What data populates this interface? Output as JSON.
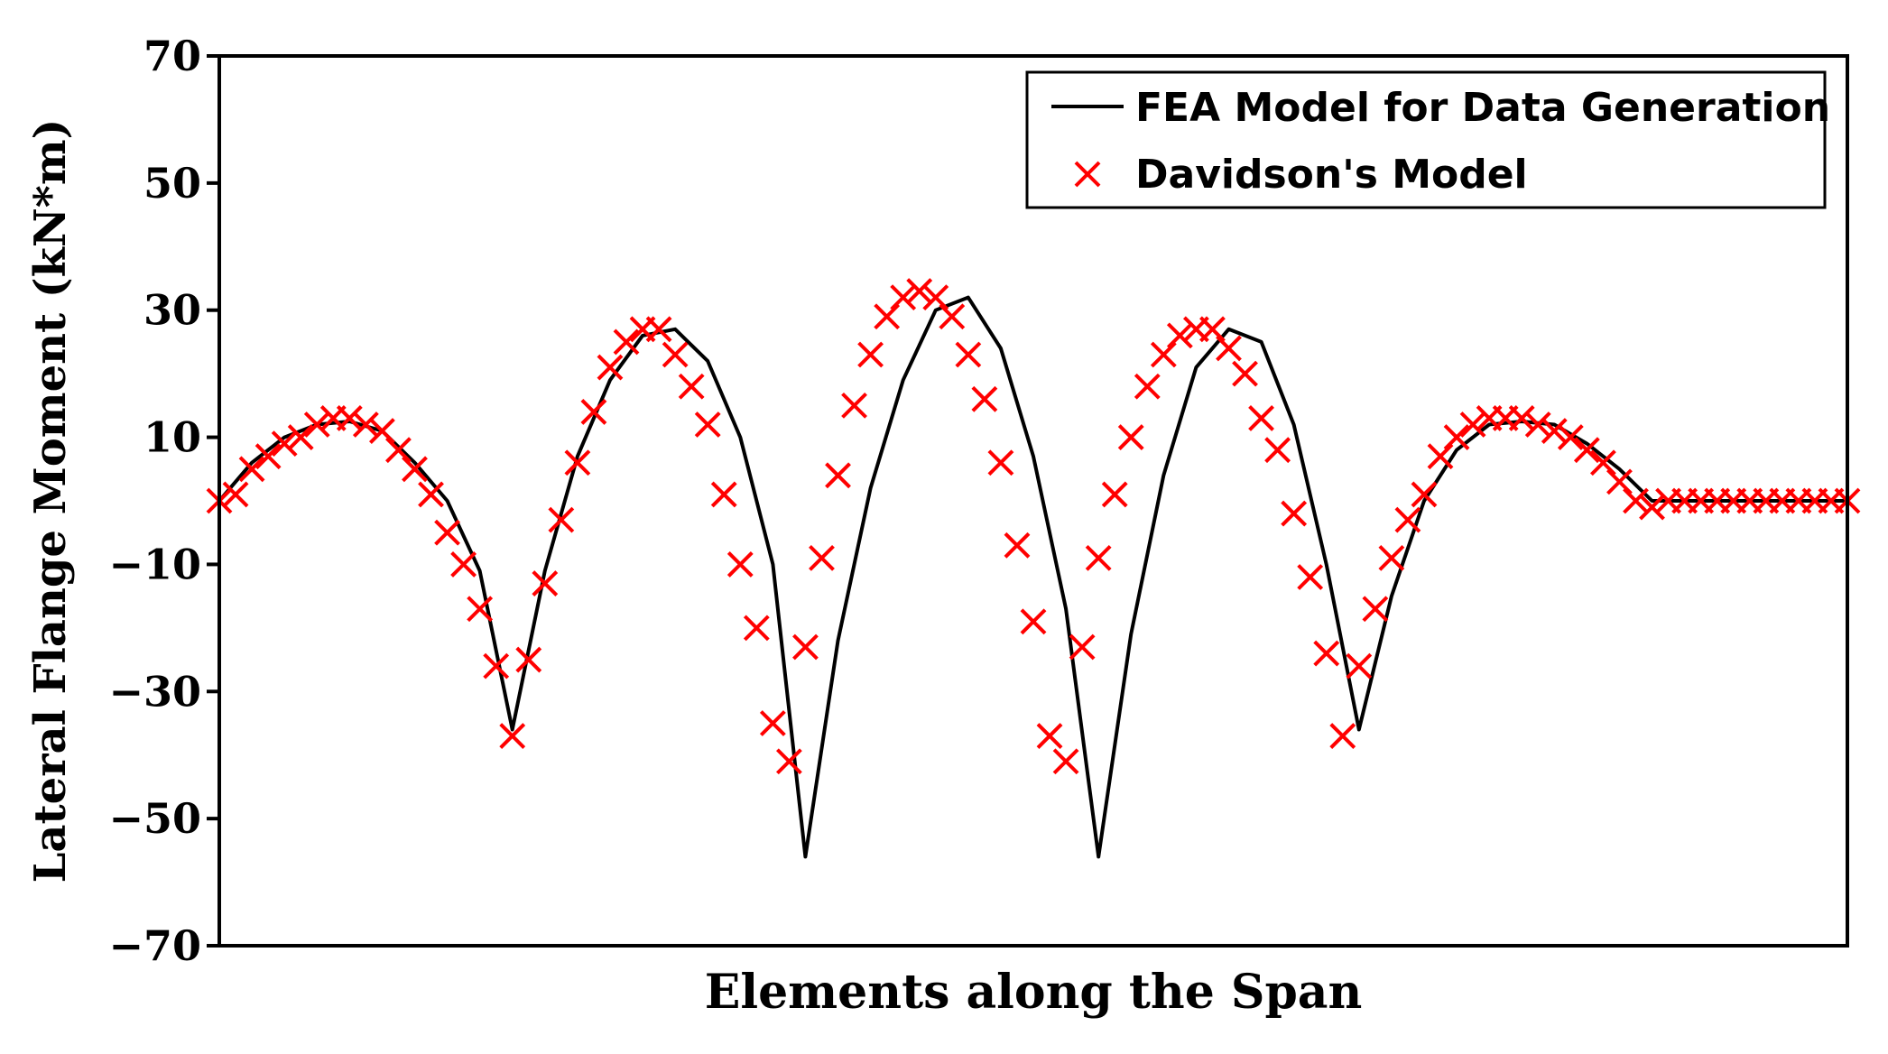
{
  "chart_data": {
    "type": "line",
    "title": "",
    "xlabel": "Elements along the Span",
    "ylabel": "Lateral Flange Moment (kN*m)",
    "ylim": [
      -70,
      70
    ],
    "xlim": [
      0,
      100
    ],
    "yticks": [
      70,
      50,
      30,
      10,
      -10,
      -30,
      -50,
      -70
    ],
    "ytick_labels": [
      "70",
      "50",
      "30",
      "10",
      "−10",
      "−30",
      "−50",
      "−70"
    ],
    "legend": {
      "placement": "top-right",
      "entries": [
        "FEA Model for Data Generation",
        "Davidson's Model"
      ]
    },
    "colors": {
      "line": "#000000",
      "marker": "#ff0000"
    },
    "series": [
      {
        "name": "FEA Model for Data Generation",
        "style": "line",
        "x": [
          0,
          2,
          4,
          6,
          8,
          10,
          12,
          14,
          16,
          18,
          20,
          22,
          24,
          26,
          28,
          30,
          32,
          34,
          36,
          38,
          40,
          42,
          44,
          46,
          48,
          50,
          52,
          54,
          56,
          58,
          60,
          62,
          64,
          66,
          68,
          70,
          72,
          74,
          76,
          78,
          80,
          82,
          84,
          86,
          88,
          90,
          92,
          94,
          96,
          98,
          100
        ],
        "values": [
          0,
          6,
          10,
          12,
          12.5,
          11,
          6,
          0,
          -11,
          -36,
          -11,
          7,
          19,
          26,
          27,
          22,
          10,
          -10,
          -56,
          -22,
          2,
          19,
          30,
          32,
          24,
          7,
          -17,
          -56,
          -21,
          4,
          21,
          27,
          25,
          12,
          -10,
          -36,
          -15,
          0,
          8,
          12,
          12.5,
          12,
          9,
          5,
          0,
          0,
          0,
          0,
          0,
          0,
          0
        ]
      },
      {
        "name": "Davidson's Model",
        "style": "marker-x",
        "x": [
          0,
          1,
          2,
          3,
          4,
          5,
          6,
          7,
          8,
          9,
          10,
          11,
          12,
          13,
          14,
          15,
          16,
          17,
          18,
          19,
          20,
          21,
          22,
          23,
          24,
          25,
          26,
          27,
          28,
          29,
          30,
          31,
          32,
          33,
          34,
          35,
          36,
          37,
          38,
          39,
          40,
          41,
          42,
          43,
          44,
          45,
          46,
          47,
          48,
          49,
          50,
          51,
          52,
          53,
          54,
          55,
          56,
          57,
          58,
          59,
          60,
          61,
          62,
          63,
          64,
          65,
          66,
          67,
          68,
          69,
          70,
          71,
          72,
          73,
          74,
          75,
          76,
          77,
          78,
          79,
          80,
          81,
          82,
          83,
          84,
          85,
          86,
          87,
          88,
          89,
          90,
          91,
          92,
          93,
          94,
          95,
          96,
          97,
          98,
          99,
          100
        ],
        "values": [
          0,
          1,
          5,
          7,
          9,
          10,
          12,
          13,
          13,
          12,
          11,
          8,
          5,
          1,
          -5,
          -10,
          -17,
          -26,
          -37,
          -25,
          -13,
          -3,
          6,
          14,
          21,
          25,
          27,
          27,
          23,
          18,
          12,
          1,
          -10,
          -20,
          -35,
          -41,
          -23,
          -9,
          4,
          15,
          23,
          29,
          32,
          33,
          32,
          29,
          23,
          16,
          6,
          -7,
          -19,
          -37,
          -41,
          -23,
          -9,
          1,
          10,
          18,
          23,
          26,
          27,
          27,
          24,
          20,
          13,
          8,
          -2,
          -12,
          -24,
          -37,
          -26,
          -17,
          -9,
          -3,
          1,
          7,
          10,
          12,
          13,
          13,
          13,
          12,
          11,
          10,
          8,
          6,
          3,
          0,
          -1,
          0,
          0,
          0,
          0,
          0,
          0,
          0,
          0,
          0,
          0,
          0,
          0
        ]
      }
    ]
  }
}
